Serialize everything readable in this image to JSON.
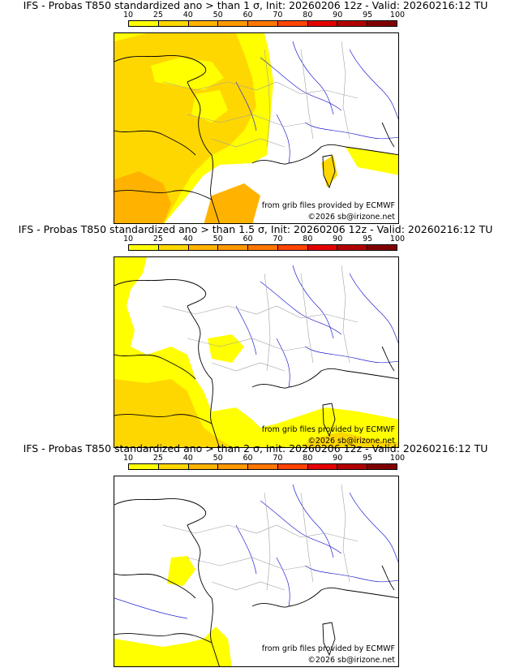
{
  "colorbar": {
    "labels": [
      "10",
      "25",
      "40",
      "50",
      "60",
      "70",
      "80",
      "90",
      "95",
      "100"
    ],
    "colors": [
      "#ffff00",
      "#ffd700",
      "#ffb300",
      "#ff9900",
      "#ff7700",
      "#ff4400",
      "#e60000",
      "#b30000",
      "#800000"
    ]
  },
  "panels": [
    {
      "title": "IFS - Probas T850  standardized ano > than 1 σ, Init: 20260206 12z - Valid: 20260216:12 TU",
      "credit_source": "from grib files provided by ECMWF",
      "credit_copyright": "©2026 sb@irizone.net"
    },
    {
      "title": "IFS - Probas T850  standardized ano > than 1.5 σ, Init: 20260206 12z - Valid: 20260216:12 TU",
      "credit_source": "from grib files provided by ECMWF",
      "credit_copyright": "©2026 sb@irizone.net"
    },
    {
      "title": "IFS - Probas T850  standardized ano > than 2 σ, Init: 20260206 12z - Valid: 20260216:12 TU",
      "credit_source": "from grib files provided by ECMWF",
      "credit_copyright": "©2026 sb@irizone.net"
    }
  ],
  "map_colors": {
    "coast": "#000000",
    "borders": "#a0a0a0",
    "rivers": "#2020d0",
    "fill_low": "#ffff00",
    "fill_mid": "#ffd700",
    "fill_high": "#ffb300"
  }
}
